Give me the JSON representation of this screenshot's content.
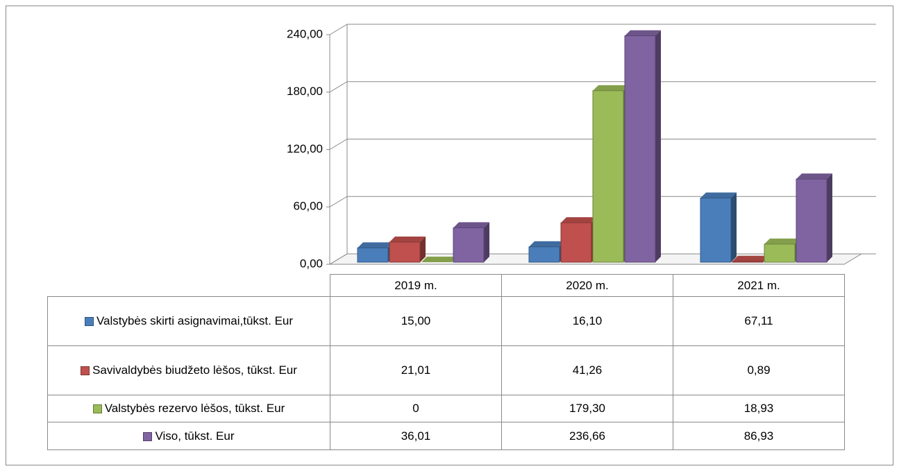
{
  "chart_data": {
    "type": "bar3d",
    "categories": [
      "2019 m.",
      "2020 m.",
      "2021 m."
    ],
    "series": [
      {
        "name": "Valstybės skirti asignavimai,tūkst. Eur",
        "color": "#4a7ebb",
        "values": [
          15.0,
          16.1,
          67.11
        ],
        "value_labels": [
          "15,00",
          "16,10",
          "67,11"
        ]
      },
      {
        "name": "Savivaldybės biudžeto lėšos, tūkst. Eur",
        "color": "#c0504d",
        "values": [
          21.01,
          41.26,
          0.89
        ],
        "value_labels": [
          "21,01",
          "41,26",
          "0,89"
        ]
      },
      {
        "name": "Valstybės rezervo lėšos, tūkst. Eur",
        "color": "#9bbb59",
        "values": [
          0,
          179.3,
          18.93
        ],
        "value_labels": [
          "0",
          "179,30",
          "18,93"
        ]
      },
      {
        "name": "Viso, tūkst. Eur",
        "color": "#8064a2",
        "values": [
          36.01,
          236.66,
          86.93
        ],
        "value_labels": [
          "36,01",
          "236,66",
          "86,93"
        ]
      }
    ],
    "ylim": [
      0,
      240
    ],
    "yticks": [
      {
        "value": 0,
        "label": "0,00"
      },
      {
        "value": 60,
        "label": "60,00"
      },
      {
        "value": 120,
        "label": "120,00"
      },
      {
        "value": 180,
        "label": "180,00"
      },
      {
        "value": 240,
        "label": "240,00"
      }
    ],
    "grid": true
  }
}
